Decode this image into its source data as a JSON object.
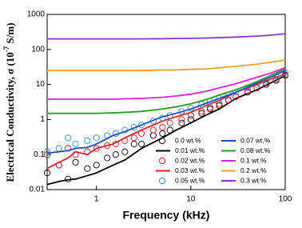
{
  "chart_data": {
    "type": "line",
    "xlabel": "Frequency (kHz)",
    "ylabel": "Electrical Conductivity, σ (10",
    "ylabel_superscript": "-7",
    "ylabel_suffix": " S/m)",
    "xscale": "log",
    "yscale": "log",
    "xlim": [
      0.3,
      100
    ],
    "ylim": [
      0.01,
      1000
    ],
    "xticks": [
      1,
      10,
      100
    ],
    "yticks": [
      0.01,
      0.1,
      1,
      10,
      100,
      1000
    ],
    "legend": "lower right",
    "series": [
      {
        "name": "0.0 wt.%",
        "style": "markers",
        "color": "#000000",
        "x": [
          0.3,
          0.4,
          0.5,
          0.6,
          0.8,
          1,
          1.3,
          1.6,
          2,
          2.5,
          3,
          4,
          5,
          6,
          8,
          10,
          13,
          16,
          20,
          25,
          30,
          40,
          50,
          63,
          80,
          100
        ],
        "values": [
          0.03,
          0.05,
          0.02,
          0.06,
          0.04,
          0.05,
          0.08,
          0.1,
          0.12,
          0.2,
          0.2,
          0.35,
          0.4,
          0.5,
          0.8,
          1,
          1.5,
          2,
          2.5,
          3.5,
          4.5,
          6,
          8,
          10,
          13,
          18
        ]
      },
      {
        "name": "0.01 wt.%",
        "style": "line",
        "color": "#000000",
        "x": [
          0.3,
          0.4,
          0.5,
          0.6,
          0.8,
          1,
          1.5,
          2,
          3,
          5,
          7,
          10,
          15,
          20,
          30,
          50,
          70,
          100
        ],
        "values": [
          0.014,
          0.017,
          0.019,
          0.02,
          0.025,
          0.03,
          0.05,
          0.07,
          0.15,
          0.3,
          0.5,
          0.8,
          1.4,
          2,
          4,
          7,
          11,
          18
        ]
      },
      {
        "name": "0.02 wt.%",
        "style": "markers",
        "color": "#e8202a",
        "x": [
          0.3,
          0.4,
          0.5,
          0.6,
          0.8,
          1,
          1.3,
          1.6,
          2,
          2.5,
          3,
          4,
          5,
          6,
          8,
          10,
          13,
          16,
          20,
          25,
          30,
          40,
          50,
          63,
          80,
          100
        ],
        "values": [
          0.1,
          0.05,
          0.15,
          0.1,
          0.12,
          0.15,
          0.18,
          0.2,
          0.25,
          0.3,
          0.4,
          0.5,
          0.6,
          0.8,
          1,
          1.3,
          1.7,
          2.2,
          2.8,
          3.6,
          4.5,
          6.5,
          8,
          11,
          14,
          19
        ]
      },
      {
        "name": "0.03 wt.%",
        "style": "line",
        "color": "#e8202a",
        "x": [
          0.3,
          0.4,
          0.5,
          0.6,
          0.8,
          1,
          1.5,
          2,
          3,
          5,
          7,
          10,
          15,
          20,
          30,
          50,
          70,
          100
        ],
        "values": [
          0.04,
          0.06,
          0.08,
          0.12,
          0.1,
          0.15,
          0.2,
          0.3,
          0.5,
          0.9,
          1.2,
          1.6,
          2.6,
          3.5,
          6,
          10,
          14,
          20
        ]
      },
      {
        "name": "0.05 wt.%",
        "style": "markers",
        "color": "#3a8fd0",
        "x": [
          0.3,
          0.4,
          0.5,
          0.6,
          0.8,
          1,
          1.3,
          1.6,
          2,
          2.5,
          3,
          4,
          5,
          6,
          8,
          10,
          13,
          16,
          20,
          25,
          30,
          40,
          50,
          63,
          80,
          100
        ],
        "values": [
          0.12,
          0.15,
          0.3,
          0.2,
          0.25,
          0.3,
          0.35,
          0.4,
          0.5,
          0.6,
          0.7,
          0.9,
          1.1,
          1.3,
          1.7,
          2.1,
          2.7,
          3.3,
          4,
          5,
          6,
          8,
          10,
          13,
          17,
          22
        ]
      },
      {
        "name": "0.07 wt.%",
        "style": "line",
        "color": "#1f4fc8",
        "x": [
          0.3,
          0.4,
          0.5,
          0.6,
          0.8,
          1,
          1.5,
          2,
          3,
          5,
          7,
          10,
          15,
          20,
          30,
          50,
          70,
          100
        ],
        "values": [
          0.11,
          0.12,
          0.13,
          0.15,
          0.16,
          0.2,
          0.35,
          0.45,
          0.7,
          1.2,
          1.5,
          2,
          3,
          4,
          6,
          11,
          16,
          25
        ]
      },
      {
        "name": "0.08 wt.%",
        "style": "line",
        "color": "#2a9a2a",
        "x": [
          0.3,
          0.4,
          0.5,
          0.6,
          0.8,
          1,
          1.5,
          2,
          3,
          5,
          7,
          10,
          15,
          20,
          30,
          50,
          70,
          100
        ],
        "values": [
          1.5,
          1.5,
          1.5,
          1.5,
          1.5,
          1.5,
          1.55,
          1.6,
          1.7,
          2,
          2.3,
          2.8,
          3.8,
          5,
          7,
          12,
          18,
          28
        ]
      },
      {
        "name": "0.1 wt.%",
        "style": "line",
        "color": "#e020e0",
        "x": [
          0.3,
          0.4,
          0.5,
          0.6,
          0.8,
          1,
          1.5,
          2,
          3,
          5,
          7,
          10,
          15,
          20,
          30,
          50,
          70,
          100
        ],
        "values": [
          3.8,
          3.8,
          3.8,
          3.8,
          3.8,
          3.8,
          3.8,
          3.9,
          4,
          4.3,
          4.7,
          5.3,
          6.5,
          8,
          10.5,
          16,
          21,
          30
        ]
      },
      {
        "name": "0.2 wt.%",
        "style": "line",
        "color": "#f0a030",
        "x": [
          0.3,
          0.4,
          0.5,
          0.6,
          0.8,
          1,
          1.5,
          2,
          3,
          5,
          7,
          10,
          15,
          20,
          30,
          50,
          70,
          100
        ],
        "values": [
          25,
          25,
          25,
          25,
          25,
          25,
          25,
          25,
          25,
          26,
          26,
          27,
          28,
          30,
          33,
          38,
          43,
          50
        ]
      },
      {
        "name": "0.3 wt.%",
        "style": "line",
        "color": "#9030d0",
        "x": [
          0.3,
          0.4,
          0.5,
          0.6,
          0.8,
          1,
          1.5,
          2,
          3,
          5,
          7,
          10,
          15,
          20,
          30,
          50,
          70,
          100
        ],
        "values": [
          200,
          200,
          200,
          200,
          200,
          200,
          200,
          200,
          200,
          202,
          205,
          208,
          212,
          217,
          225,
          240,
          255,
          280
        ]
      }
    ]
  }
}
